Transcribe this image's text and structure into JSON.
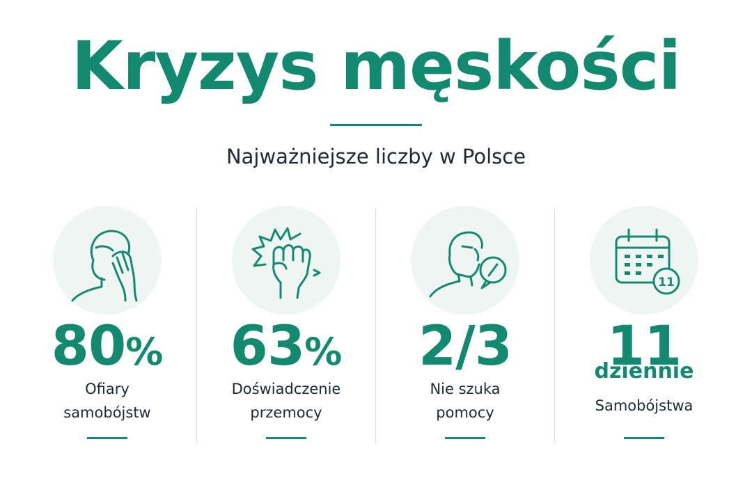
{
  "header": {
    "title": "Kryzys męskości",
    "subtitle": "Najważniejsze liczby w Polsce"
  },
  "stats": [
    {
      "icon": "distressed-man-icon",
      "value": "80",
      "unit": "%",
      "label_line1": "Ofiary",
      "label_line2": "samobójstw"
    },
    {
      "icon": "fist-impact-icon",
      "value": "63",
      "unit": "%",
      "label_line1": "Doświadczenie",
      "label_line2": "przemocy"
    },
    {
      "icon": "man-no-chat-icon",
      "value": "2/3",
      "unit": "",
      "label_line1": "Nie szuka",
      "label_line2": "pomocy"
    },
    {
      "icon": "calendar-icon",
      "value": "11",
      "sub": "dziennie",
      "label_line1": "Samobójstwa",
      "calendar_badge": "11"
    }
  ],
  "colors": {
    "accent": "#138a70",
    "text": "#1f2933",
    "circle_bg": "#eef5f3",
    "divider": "#d9dde0"
  }
}
